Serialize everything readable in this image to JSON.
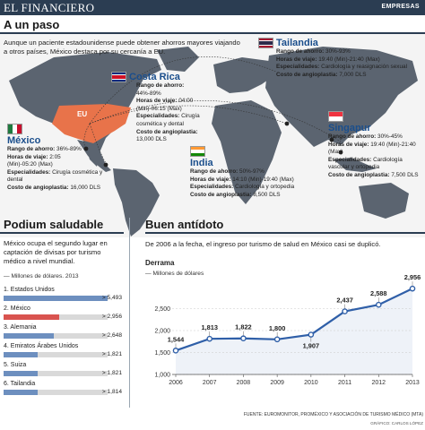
{
  "header": {
    "brand": "EL FINANCIERO",
    "section": "EMPRESAS"
  },
  "map_section": {
    "title": "A un paso",
    "intro": "Aunque un paciente estadounidense puede obtener ahorros mayores viajando a otros países, México destaca por su cercanía a EU.",
    "us_label": "EU",
    "countries": [
      {
        "name": "México",
        "lines": [
          {
            "k": "Rango de ahorro:",
            "v": "36%-89%"
          },
          {
            "k": "Horas de viaje:",
            "v": "2:05"
          },
          {
            "k": "",
            "v": "(Min)-05:20 (Max)"
          },
          {
            "k": "Especialidades:",
            "v": "Cirugía cosmética y dental"
          },
          {
            "k": "Costo de angioplastia:",
            "v": "16,000 DLS"
          }
        ]
      },
      {
        "name": "Costa Rica",
        "lines": [
          {
            "k": "Rango de ahorro:",
            "v": "44%-89%"
          },
          {
            "k": "Horas de viaje:",
            "v": "04:00"
          },
          {
            "k": "",
            "v": "(Min)-06:15 (Max)"
          },
          {
            "k": "Especialidades:",
            "v": "Cirugía cosmética y dental"
          },
          {
            "k": "Costo de angioplastia:",
            "v": "13,000 DLS"
          }
        ]
      },
      {
        "name": "Tailandia",
        "lines": [
          {
            "k": "Rango de ahorro:",
            "v": "30%-93%"
          },
          {
            "k": "Horas de viaje:",
            "v": "19:40 (Min)-21:40 (Max)"
          },
          {
            "k": "Especialidades:",
            "v": "Cardiología y reasignación sexual"
          },
          {
            "k": "Costo de angioplastia:",
            "v": "7,000 DLS"
          }
        ]
      },
      {
        "name": "India",
        "lines": [
          {
            "k": "Rango de ahorro:",
            "v": "50%-97%"
          },
          {
            "k": "Horas de viaje:",
            "v": "14:10 (Min)-19:40 (Max)"
          },
          {
            "k": "Especialidades:",
            "v": "Cardiología y ortopedia"
          },
          {
            "k": "Costo de angioplastia:",
            "v": "8,500 DLS"
          }
        ]
      },
      {
        "name": "Singapur",
        "lines": [
          {
            "k": "Rango de ahorro:",
            "v": "30%-45%"
          },
          {
            "k": "Horas de viaje:",
            "v": "19:40 (Min)-21:40 (Max)"
          },
          {
            "k": "Especialidades:",
            "v": "Cardiología vascular y ortopedia"
          },
          {
            "k": "Costo de angioplastia:",
            "v": "7,500 DLS"
          }
        ]
      }
    ]
  },
  "podium": {
    "title": "Podium saludable",
    "text": "México ocupa el segundo lugar en captación de divisas por turismo médico a nivel mundial.",
    "units": "Millones de dólares. 2013",
    "bar_colors": {
      "default": "#6d8fbf",
      "highlight": "#d9534f"
    }
  },
  "chart_data": [
    {
      "type": "bar",
      "title": "Podium saludable",
      "ylabel": "Millones de dólares. 2013",
      "categories": [
        "1. Estados Unidos",
        "2. México",
        "3. Alemania",
        "4. Emiratos Árabes Unidos",
        "5. Suiza",
        "6. Tailandia"
      ],
      "values": [
        5493,
        2956,
        2648,
        1821,
        1821,
        1814
      ],
      "value_labels": [
        "5,493",
        "2,956",
        "2,648",
        "1,821",
        "1,821",
        "1,814"
      ],
      "xlim": [
        0,
        5493
      ]
    },
    {
      "type": "line",
      "title": "Buen antídoto",
      "subtitle": "De 2006 a la fecha, el ingreso por turismo de salud en México casi se duplicó.",
      "series_title": "Derrama",
      "ylabel": "Millones de dólares",
      "x": [
        "2006",
        "2007",
        "2008",
        "2009",
        "2010",
        "2011",
        "2012",
        "2013"
      ],
      "series": [
        {
          "values": [
            1544,
            1813,
            1822,
            1800,
            1907,
            2437,
            2588,
            2956
          ]
        }
      ],
      "value_labels": [
        "1,544",
        "1,813",
        "1,822",
        "1,800",
        "1,907",
        "2,437",
        "2,588",
        "2,956"
      ],
      "yticks": [
        "2,500",
        "2,000",
        "1,500",
        "1,000"
      ],
      "ylim": [
        1000,
        3000
      ],
      "grid": true,
      "color": "#2f5fa8"
    }
  ],
  "footer": {
    "source": "FUENTE: EUROMONITOR, PROMÉXICO Y ASOCIACIÓN DE TURISMO MÉDICO (MTA)",
    "credit": "GRÁFICO: CARLOS LÓPEZ"
  }
}
